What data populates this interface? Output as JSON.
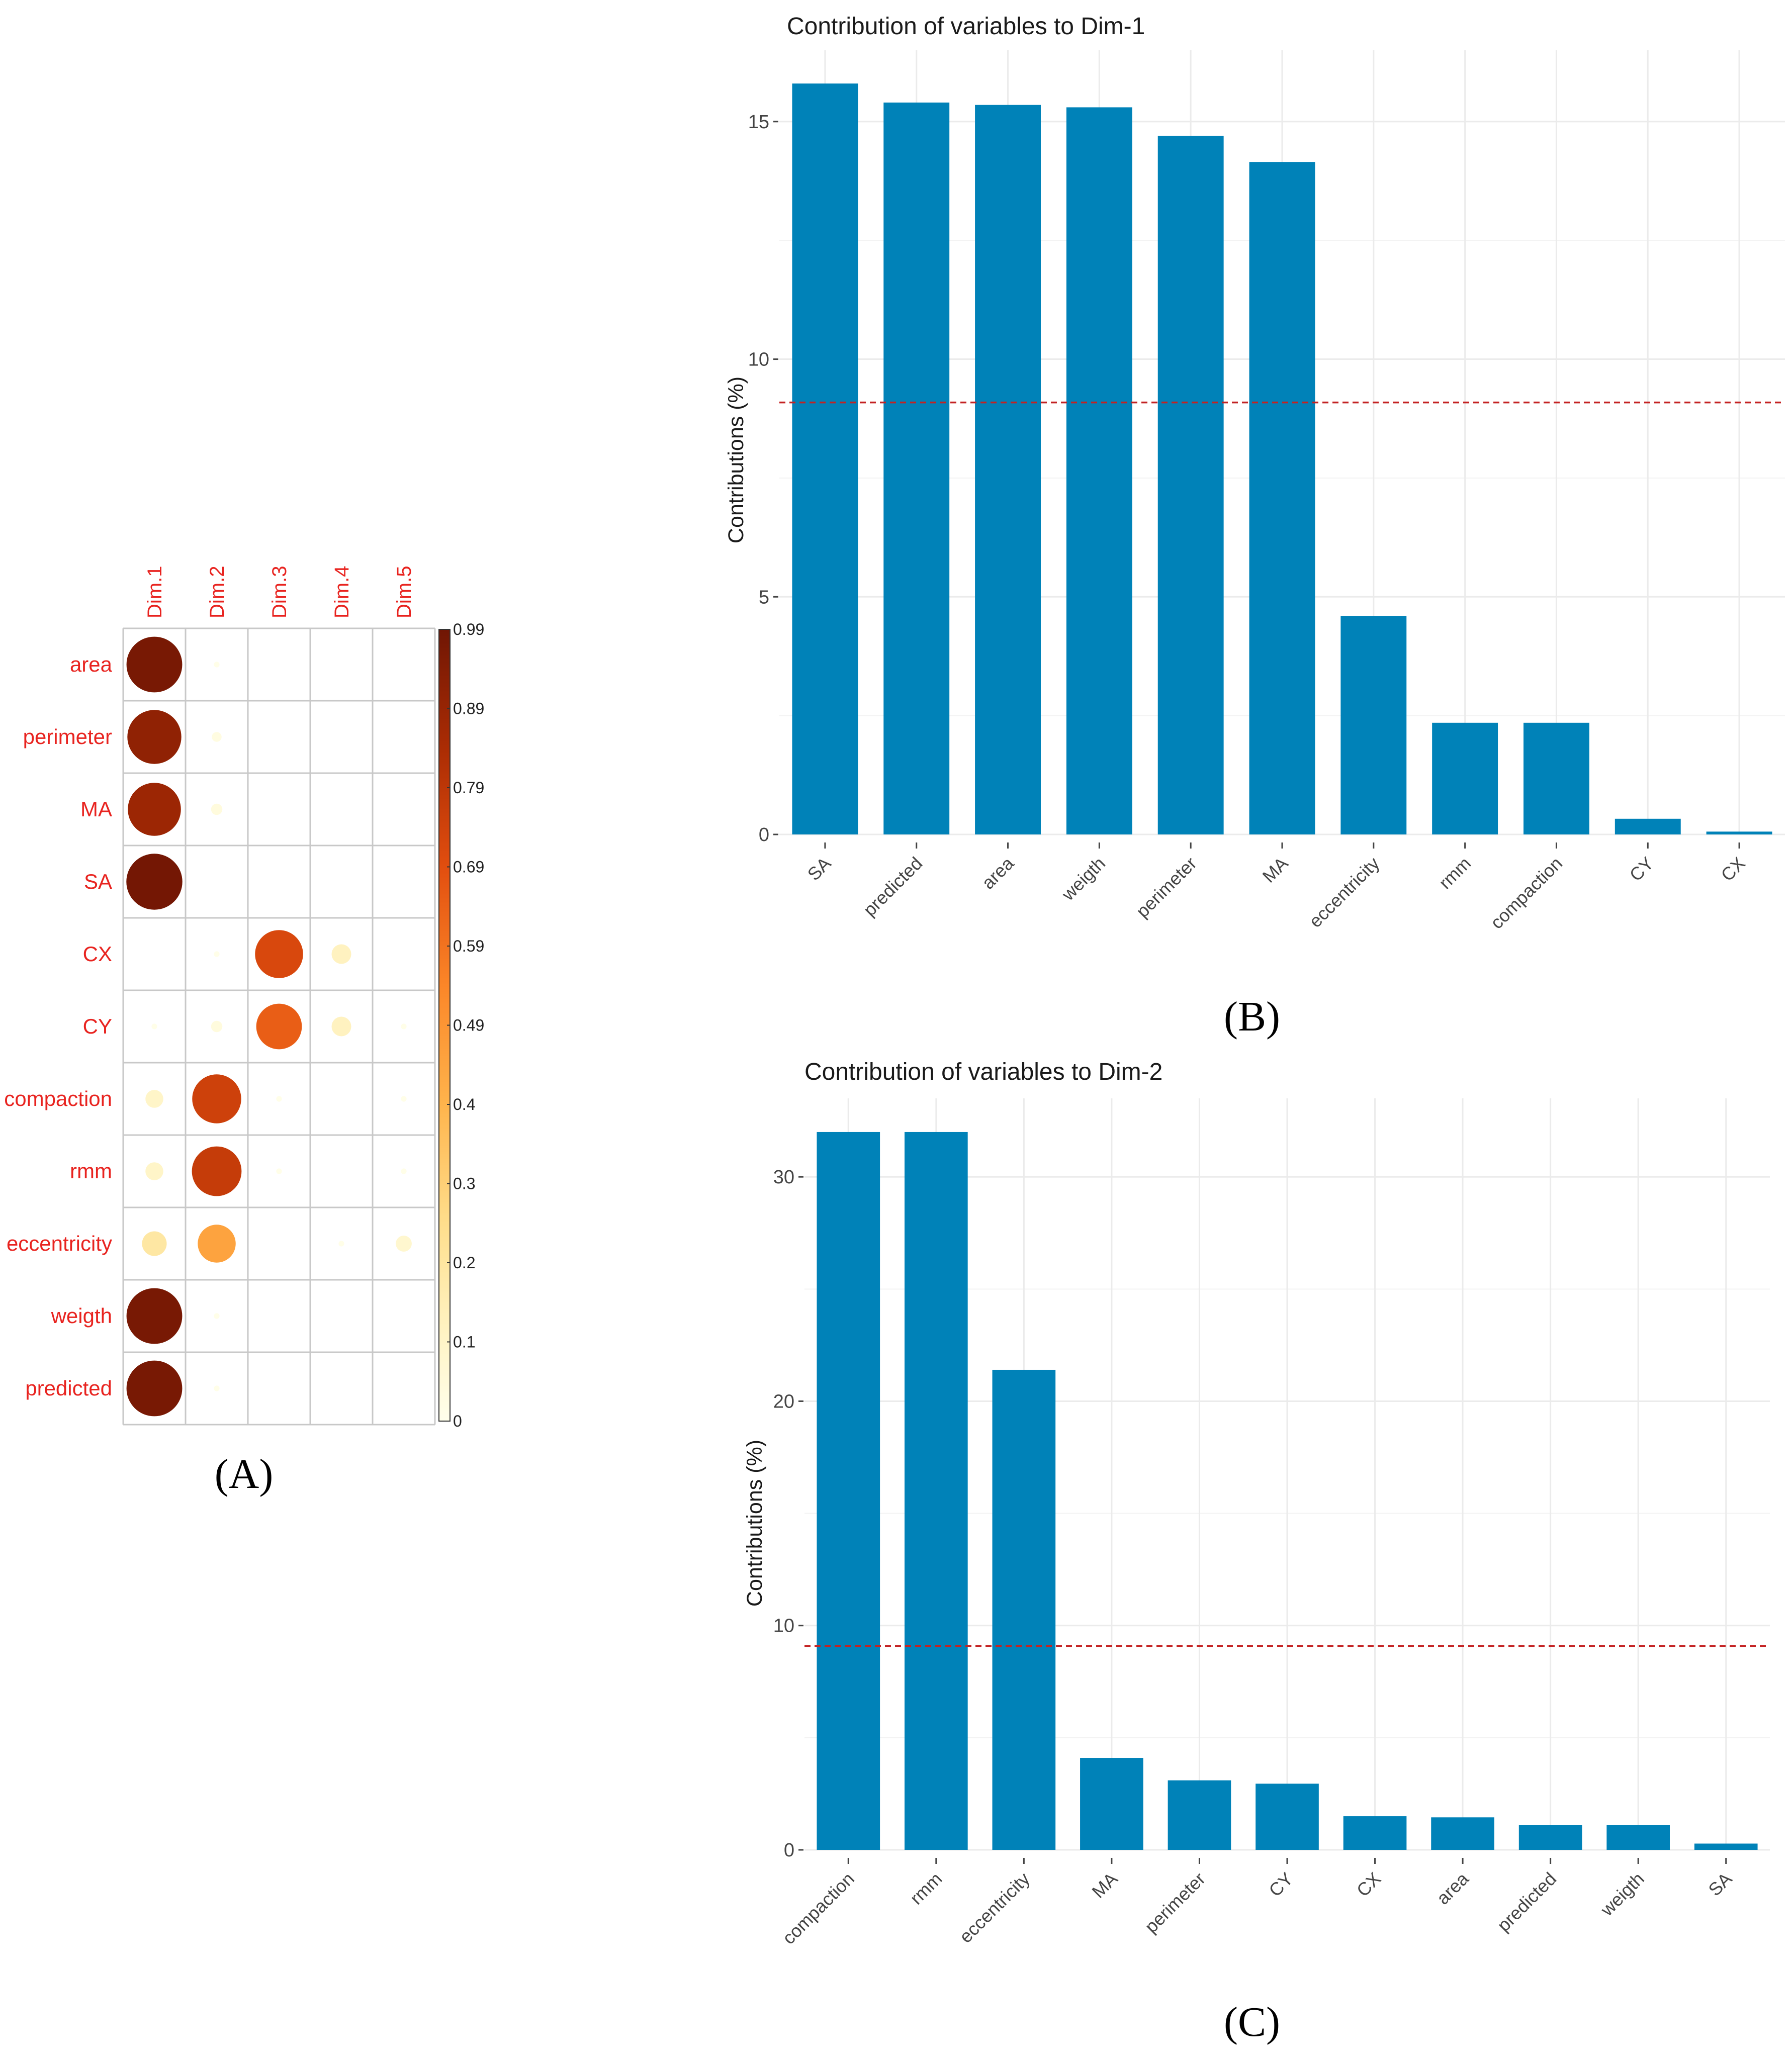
{
  "panel_labels": {
    "a": "(A)",
    "b": "(B)",
    "c": "(C)"
  },
  "colors": {
    "bar": "#0082B8",
    "row_label": "#E8231F",
    "ref_line": "#C42222",
    "grid": "#EBEBEB",
    "cell_border": "#C8C8C8"
  },
  "chart_data": [
    {
      "id": "A",
      "type": "heatmap",
      "columns": [
        "Dim.1",
        "Dim.2",
        "Dim.3",
        "Dim.4",
        "Dim.5"
      ],
      "rows": [
        "area",
        "perimeter",
        "MA",
        "SA",
        "CX",
        "CY",
        "compaction",
        "rmm",
        "eccentricity",
        "weigth",
        "predicted"
      ],
      "values": [
        [
          0.97,
          0.01,
          0.0,
          0.0,
          0.0
        ],
        [
          0.91,
          0.03,
          0.0,
          0.0,
          0.0
        ],
        [
          0.88,
          0.04,
          0.0,
          0.0,
          0.0
        ],
        [
          0.98,
          0.0,
          0.0,
          0.0,
          0.0
        ],
        [
          0.0,
          0.01,
          0.72,
          0.12,
          0.0
        ],
        [
          0.01,
          0.04,
          0.65,
          0.12,
          0.01
        ],
        [
          0.1,
          0.75,
          0.01,
          0.0,
          0.01
        ],
        [
          0.1,
          0.77,
          0.01,
          0.0,
          0.01
        ],
        [
          0.19,
          0.45,
          0.0,
          0.01,
          0.08
        ],
        [
          0.97,
          0.01,
          0.0,
          0.0,
          0.0
        ],
        [
          0.97,
          0.01,
          0.0,
          0.0,
          0.0
        ]
      ],
      "colorbar_ticks": [
        "0.99",
        "0.89",
        "0.79",
        "0.69",
        "0.59",
        "0.49",
        "0.4",
        "0.3",
        "0.2",
        "0.1",
        "0"
      ],
      "range": [
        0,
        0.99
      ]
    },
    {
      "id": "B",
      "type": "bar",
      "title": "Contribution of variables to Dim-1",
      "ylabel": "Contributions (%)",
      "categories": [
        "SA",
        "predicted",
        "area",
        "weigth",
        "perimeter",
        "MA",
        "eccentricity",
        "rmm",
        "compaction",
        "CY",
        "CX"
      ],
      "values": [
        15.8,
        15.4,
        15.35,
        15.3,
        14.7,
        14.15,
        4.6,
        2.35,
        2.35,
        0.33,
        0.06
      ],
      "ylim": [
        0,
        16.5
      ],
      "yticks": [
        0,
        5,
        10,
        15
      ],
      "reference_line": 9.09,
      "grid": true
    },
    {
      "id": "C",
      "type": "bar",
      "title": "Contribution of variables to Dim-2",
      "ylabel": "Contributions (%)",
      "categories": [
        "compaction",
        "rmm",
        "eccentricity",
        "MA",
        "perimeter",
        "CY",
        "CX",
        "area",
        "predicted",
        "weigth",
        "SA"
      ],
      "values": [
        32.0,
        32.0,
        21.4,
        4.1,
        3.1,
        2.95,
        1.5,
        1.45,
        1.1,
        1.1,
        0.28
      ],
      "ylim": [
        0,
        33.5
      ],
      "yticks": [
        0,
        10,
        20,
        30
      ],
      "reference_line": 9.09,
      "grid": true
    }
  ]
}
